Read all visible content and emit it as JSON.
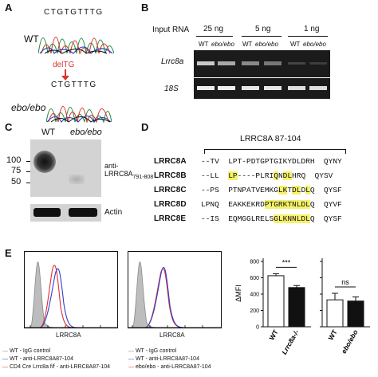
{
  "panelA": {
    "label": "A",
    "wt_label": "WT",
    "wt_seq": "CTGTGTTTG",
    "del_label": "delTG",
    "mut_label": "ebo/ebo",
    "mut_seq": "CTGTTTG",
    "colors": {
      "arrow": "#d9342b"
    }
  },
  "panelB": {
    "label": "B",
    "input_rna": "Input RNA",
    "amounts": [
      "25 ng",
      "5 ng",
      "1 ng"
    ],
    "lanes": [
      "WT",
      "ebo/ebo",
      "WT",
      "ebo/ebo",
      "WT",
      "ebo/ebo"
    ],
    "gene1": "Lrrc8a",
    "gene2": "18S"
  },
  "panelC": {
    "label": "C",
    "wt": "WT",
    "mut": "ebo/ebo",
    "mw": [
      "100",
      "75",
      "50"
    ],
    "antibody": "anti-",
    "antibody_target": "LRRC8A",
    "antibody_sub": "791-808",
    "loading": "Actin"
  },
  "panelD": {
    "label": "D",
    "region": "LRRC8A 87-104",
    "rows": [
      {
        "name": "LRRC8A",
        "seq": [
          {
            "t": "--TV  LPT-PDTGPTGIKYDLDRH",
            "h": false
          },
          {
            "t": "  QYNY",
            "h": false
          }
        ]
      },
      {
        "name": "LRRC8B",
        "seq": [
          {
            "t": "--LL  ",
            "h": false
          },
          {
            "t": "LP",
            "h": true
          },
          {
            "t": "----PLRI",
            "h": false
          },
          {
            "t": "Q",
            "h": true
          },
          {
            "t": "N",
            "h": false
          },
          {
            "t": "DL",
            "h": true
          },
          {
            "t": "HRQ",
            "h": false
          },
          {
            "t": "  QYSV",
            "h": false
          }
        ]
      },
      {
        "name": "LRRC8C",
        "seq": [
          {
            "t": "--PS  PTNPATVEMKG",
            "h": false
          },
          {
            "t": "LK",
            "h": true
          },
          {
            "t": "T",
            "h": false
          },
          {
            "t": "DL",
            "h": true
          },
          {
            "t": "D",
            "h": false
          },
          {
            "t": "L",
            "h": true
          },
          {
            "t": "Q",
            "h": false
          },
          {
            "t": "  QYSF",
            "h": false
          }
        ]
      },
      {
        "name": "LRRC8D",
        "seq": [
          {
            "t": "LPNQ  EAKKEKRD",
            "h": false
          },
          {
            "t": "PTGRKTNLDL",
            "h": true
          },
          {
            "t": "Q",
            "h": false
          },
          {
            "t": "  QYVF",
            "h": false
          }
        ]
      },
      {
        "name": "LRRC8E",
        "seq": [
          {
            "t": "--IS  EQMGGLRELS",
            "h": false
          },
          {
            "t": "GLKNNLDL",
            "h": true
          },
          {
            "t": "Q",
            "h": false
          },
          {
            "t": "  QYSF",
            "h": false
          }
        ]
      }
    ]
  },
  "panelE": {
    "label": "E",
    "hist_xlabel": "LRRC8A",
    "legend_left": [
      {
        "text": "WT - IgG control",
        "color": "#8a8a8a"
      },
      {
        "text": "WT - anti-LRRC8A87-104",
        "color": "#2f3fd0"
      },
      {
        "text": "CD4 Cre Lrrc8a f/f - anti-LRRC8A87-104",
        "color": "#e03030"
      }
    ],
    "legend_right": [
      {
        "text": "WT - IgG control",
        "color": "#8a8a8a"
      },
      {
        "text": "WT - anti-LRRC8A87-104",
        "color": "#2f3fd0"
      },
      {
        "text": "ebo/ebo - anti-LRRC8A87-104",
        "color": "#e03030"
      }
    ],
    "ylabel": "ΔMFI",
    "yticks": [
      "0",
      "200",
      "400",
      "600",
      "800"
    ],
    "sig1": "***",
    "sig2": "ns",
    "bar_groups": [
      {
        "categories": [
          "WT",
          "Lrrc8a-/-"
        ],
        "values": [
          625,
          480
        ],
        "errors": [
          25,
          25
        ]
      },
      {
        "categories": [
          "WT",
          "ebo/ebo"
        ],
        "values": [
          330,
          315
        ],
        "errors": [
          80,
          50
        ]
      }
    ],
    "ylim": [
      0,
      800
    ]
  }
}
